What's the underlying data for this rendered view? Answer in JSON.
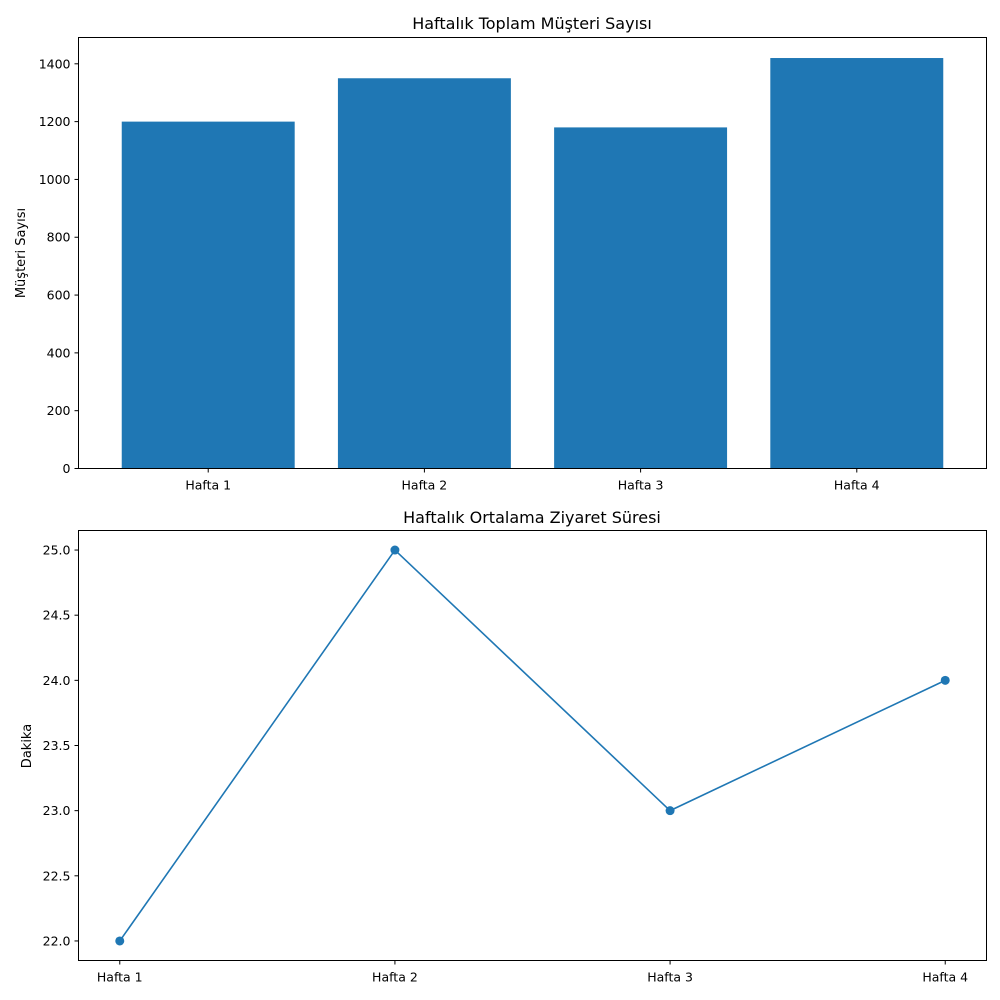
{
  "chart_data": [
    {
      "type": "bar",
      "title": "Haftalık Toplam Müşteri Sayısı",
      "xlabel": "",
      "ylabel": "Müşteri Sayısı",
      "categories": [
        "Hafta 1",
        "Hafta 2",
        "Hafta 3",
        "Hafta 4"
      ],
      "values": [
        1200,
        1350,
        1180,
        1420
      ],
      "ylim": [
        0,
        1491
      ],
      "yticks": [
        0,
        200,
        400,
        600,
        800,
        1000,
        1200,
        1400
      ],
      "ytick_labels": [
        "0",
        "200",
        "400",
        "600",
        "800",
        "1000",
        "1200",
        "1400"
      ],
      "color": "#1f77b4",
      "grid": false,
      "legend": "none"
    },
    {
      "type": "line",
      "title": "Haftalık Ortalama Ziyaret Süresi",
      "xlabel": "",
      "ylabel": "Dakika",
      "x": [
        "Hafta 1",
        "Hafta 2",
        "Hafta 3",
        "Hafta 4"
      ],
      "values": [
        22,
        25,
        23,
        24
      ],
      "ylim": [
        21.85,
        25.15
      ],
      "yticks": [
        22.0,
        22.5,
        23.0,
        23.5,
        24.0,
        24.5,
        25.0
      ],
      "ytick_labels": [
        "22.0",
        "22.5",
        "23.0",
        "23.5",
        "24.0",
        "24.5",
        "25.0"
      ],
      "color": "#1f77b4",
      "marker": "circle",
      "grid": false,
      "legend": "none"
    }
  ]
}
